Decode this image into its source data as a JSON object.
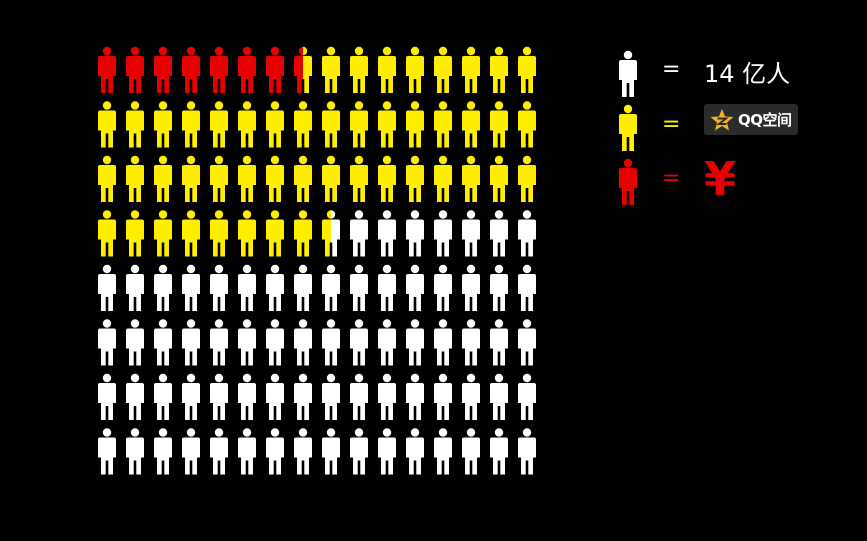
{
  "grid": {
    "rows": 8,
    "cols": 16,
    "red_count": 7.5,
    "yellow_count": 49,
    "total_people": "14 亿人"
  },
  "colors": {
    "background": "#000000",
    "white_person": "#ffffff",
    "yellow_person": "#ffee00",
    "red_person": "#e60000",
    "qzone_star": "#f5b820"
  },
  "legend": {
    "white": {
      "equals": "=",
      "label": "14 亿人"
    },
    "yellow": {
      "equals": "=",
      "label": "QQ空间",
      "icon": "qzone-star-icon"
    },
    "red": {
      "equals": "=",
      "label": "¥"
    }
  }
}
